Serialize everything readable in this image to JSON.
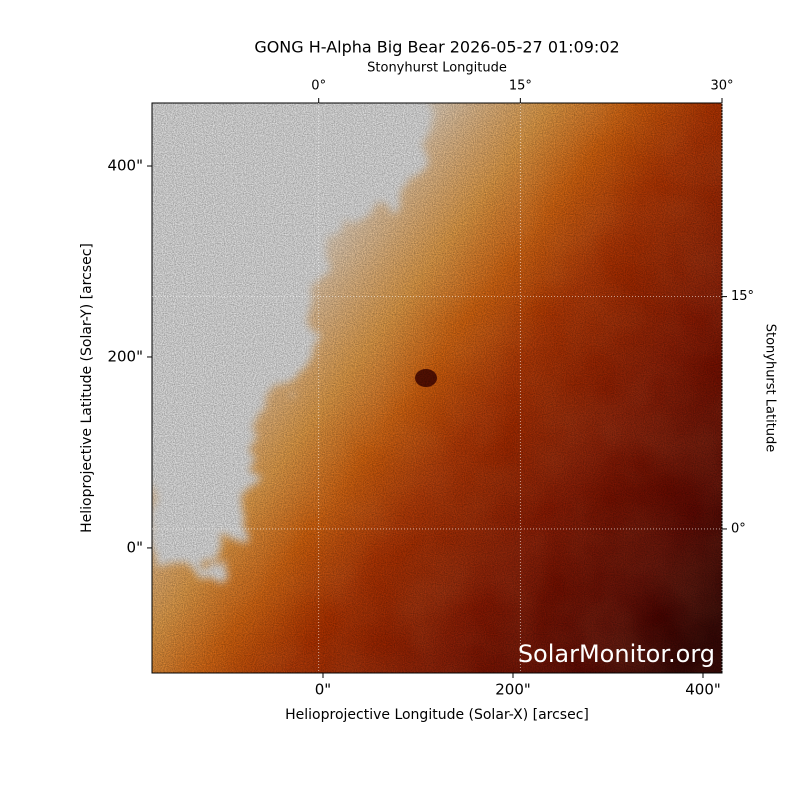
{
  "chart_data": {
    "type": "image",
    "title": "GONG H-Alpha Big Bear 2026-05-27 01:09:02",
    "xlabel": "Helioprojective Longitude (Solar-X) [arcsec]",
    "ylabel": "Helioprojective Latitude (Solar-Y) [arcsec]",
    "x2label": "Stonyhurst Longitude",
    "y2label": "Stonyhurst Latitude",
    "watermark": "SolarMonitor.org",
    "xlim": [
      -180,
      420
    ],
    "xticks": [
      {
        "value": 0,
        "label": "0\""
      },
      {
        "value": 200,
        "label": "200\""
      },
      {
        "value": 400,
        "label": "400\""
      }
    ],
    "ylim": [
      -131,
      466
    ],
    "yticks": [
      {
        "value": 0,
        "label": "0\""
      },
      {
        "value": 200,
        "label": "200\""
      },
      {
        "value": 400,
        "label": "400\""
      }
    ],
    "x2lim": [
      -12.4,
      30
    ],
    "x2ticks": [
      {
        "value": 0,
        "label": "0°"
      },
      {
        "value": 15,
        "label": "15°"
      },
      {
        "value": 30,
        "label": "30°"
      }
    ],
    "y2lim": [
      -9.3,
      27.5
    ],
    "y2ticks": [
      {
        "value": 0,
        "label": "0°"
      },
      {
        "value": 15,
        "label": "15°"
      }
    ],
    "grid": true
  }
}
